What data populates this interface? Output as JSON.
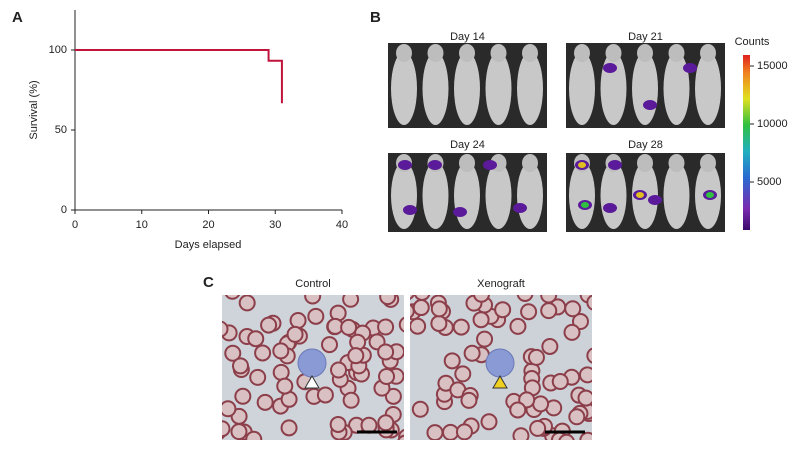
{
  "chart_data": {
    "type": "line",
    "x": [
      0,
      29,
      29,
      31,
      31
    ],
    "series": [
      {
        "color": "#c0143c",
        "values": [
          100,
          100,
          93.3,
          93.3,
          66.7
        ]
      }
    ],
    "xlabel": "Days elapsed",
    "ylabel": "Survival (%)",
    "xlim": [
      0,
      40
    ],
    "xticks": [
      0,
      10,
      20,
      30,
      40
    ],
    "ylim": [
      0,
      125
    ],
    "yticks": [
      0,
      50,
      100
    ]
  },
  "panels": {
    "a": "A",
    "b": "B",
    "c": "C"
  },
  "imaging": {
    "days": [
      "Day 14",
      "Day 21",
      "Day 24",
      "Day 28"
    ],
    "colorbar": {
      "label": "Counts",
      "lim": [
        860,
        15950
      ],
      "ticks": [
        5000,
        10000,
        15000
      ]
    }
  },
  "smears": {
    "titles": [
      "Control",
      "Xenograft"
    ]
  }
}
